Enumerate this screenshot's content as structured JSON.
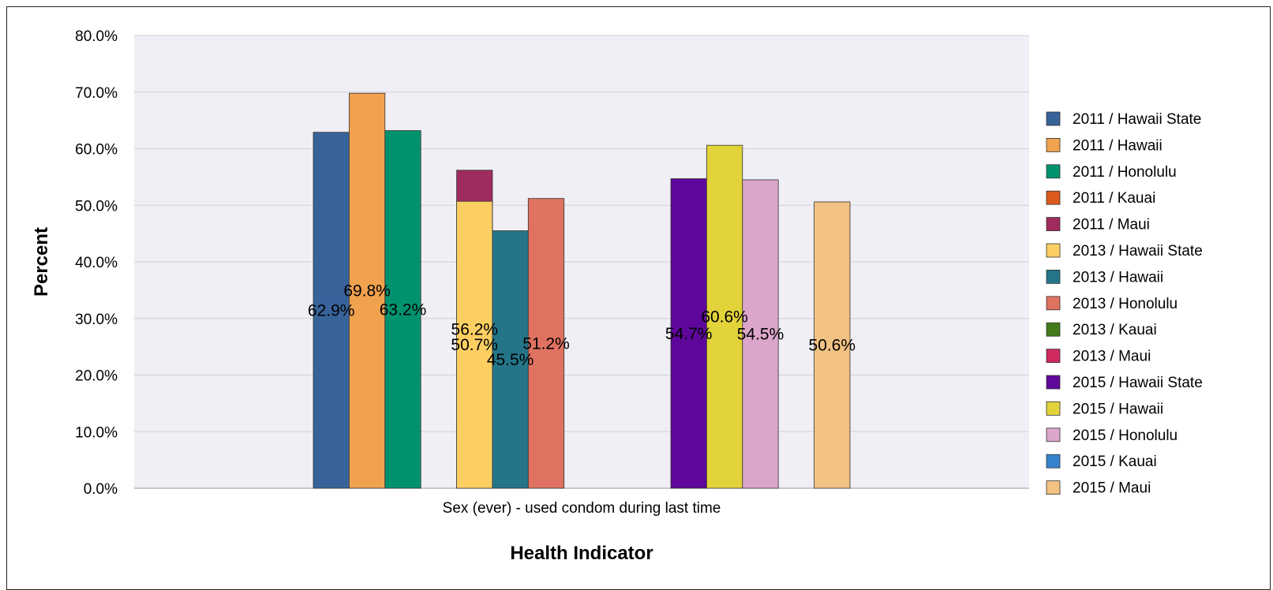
{
  "chart_data": {
    "type": "bar",
    "xlabel": "Health Indicator",
    "ylabel": "Percent",
    "categories": [
      "Sex (ever) - used condom during last time"
    ],
    "ylim": [
      0,
      80
    ],
    "yticks": [
      "0.0%",
      "10.0%",
      "20.0%",
      "30.0%",
      "40.0%",
      "50.0%",
      "60.0%",
      "70.0%",
      "80.0%"
    ],
    "grid": true,
    "legend_position": "right",
    "series": [
      {
        "name": "2011 / Hawaii State",
        "value": 62.9,
        "label": "62.9%",
        "color": "#38639a"
      },
      {
        "name": "2011 / Hawaii",
        "value": 69.8,
        "label": "69.8%",
        "color": "#f0a24f"
      },
      {
        "name": "2011 / Honolulu",
        "value": 63.2,
        "label": "63.2%",
        "color": "#00926f"
      },
      {
        "name": "2011 / Kauai",
        "value": null,
        "label": "",
        "color": "#dd5a1f"
      },
      {
        "name": "2011 / Maui",
        "value": 56.2,
        "label": "56.2%",
        "color": "#a02b5f"
      },
      {
        "name": "2013 / Hawaii State",
        "value": 50.7,
        "label": "50.7%",
        "color": "#fdcf62"
      },
      {
        "name": "2013 / Hawaii",
        "value": 45.5,
        "label": "45.5%",
        "color": "#247589"
      },
      {
        "name": "2013 / Honolulu",
        "value": 51.2,
        "label": "51.2%",
        "color": "#e07262"
      },
      {
        "name": "2013 / Kauai",
        "value": null,
        "label": "",
        "color": "#447a1a"
      },
      {
        "name": "2013 / Maui",
        "value": null,
        "label": "",
        "color": "#cf2a5e"
      },
      {
        "name": "2015 / Hawaii State",
        "value": 54.7,
        "label": "54.7%",
        "color": "#5e079a"
      },
      {
        "name": "2015 / Hawaii",
        "value": 60.6,
        "label": "60.6%",
        "color": "#e2d33b"
      },
      {
        "name": "2015 / Honolulu",
        "value": 54.5,
        "label": "54.5%",
        "color": "#dba6c9"
      },
      {
        "name": "2015 / Kauai",
        "value": null,
        "label": "",
        "color": "#3683cd"
      },
      {
        "name": "2015 / Maui",
        "value": 50.6,
        "label": "50.6%",
        "color": "#f2c283"
      }
    ]
  }
}
